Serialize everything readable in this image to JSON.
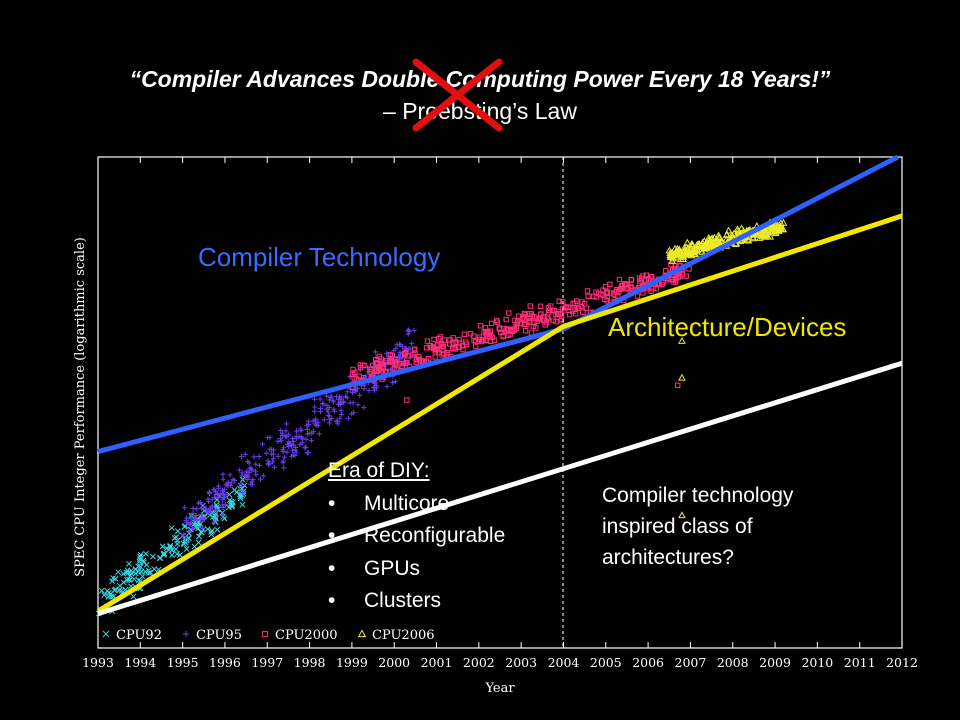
{
  "slide": {
    "title": "“Compiler Advances Double Computing Power Every 18 Years!”",
    "subtitle": "– Proebsting’s Law",
    "cross_color": "#e01010"
  },
  "annotations": {
    "compiler_technology": "Compiler Technology",
    "architecture_devices": "Architecture/Devices",
    "era_title": "Era of DIY:",
    "era_items": [
      "Multicore",
      "Reconfigurable",
      "GPUs",
      "Clusters"
    ],
    "note": "Compiler technology inspired class of architectures?"
  },
  "chart_data": {
    "type": "scatter",
    "title": "",
    "xlabel": "Year",
    "ylabel": "SPEC CPU Integer Performance (logarithmic scale)",
    "y_scale": "log",
    "xlim": [
      1993,
      2012
    ],
    "x_ticks": [
      1993,
      1994,
      1995,
      1996,
      1997,
      1998,
      1999,
      2000,
      2001,
      2002,
      2003,
      2004,
      2005,
      2006,
      2007,
      2008,
      2009,
      2010,
      2011,
      2012
    ],
    "grid": false,
    "legend": "bottom-left",
    "reference_line": {
      "x": 2004,
      "style": "dashed"
    },
    "series": [
      {
        "name": "CPU92",
        "marker": "x",
        "color": "#3ad7e6",
        "x_range": [
          1993,
          1996.5
        ],
        "trend": [
          [
            1993,
            0.09
          ],
          [
            1996.5,
            0.32
          ]
        ]
      },
      {
        "name": "CPU95",
        "marker": "+",
        "color": "#6a3cf0",
        "x_range": [
          1995,
          2000.5
        ],
        "trend": [
          [
            1995,
            0.25
          ],
          [
            2000.5,
            0.62
          ]
        ]
      },
      {
        "name": "CPU2000",
        "marker": "square",
        "color": "#ff2e78",
        "x_range": [
          1999,
          2007
        ],
        "trend": [
          [
            1999,
            0.55
          ],
          [
            2007,
            0.77
          ]
        ]
      },
      {
        "name": "CPU2006",
        "marker": "triangle",
        "color": "#ecec2a",
        "x_range": [
          2006.5,
          2009.2
        ],
        "trend": [
          [
            2006.5,
            0.8
          ],
          [
            2009.2,
            0.86
          ]
        ]
      }
    ],
    "trend_lines": [
      {
        "name": "Compiler Technology",
        "color": "#3060ff",
        "points": [
          [
            1993,
            0.4
          ],
          [
            2004,
            0.65
          ],
          [
            2011.9,
            1.0
          ]
        ]
      },
      {
        "name": "Architecture/Devices",
        "color": "#f0e800",
        "points": [
          [
            1993,
            0.075
          ],
          [
            2004,
            0.655
          ],
          [
            2012,
            0.88
          ]
        ]
      },
      {
        "name": "",
        "color": "#ffffff",
        "points": [
          [
            1993,
            0.07
          ],
          [
            2012,
            0.58
          ]
        ]
      }
    ]
  }
}
